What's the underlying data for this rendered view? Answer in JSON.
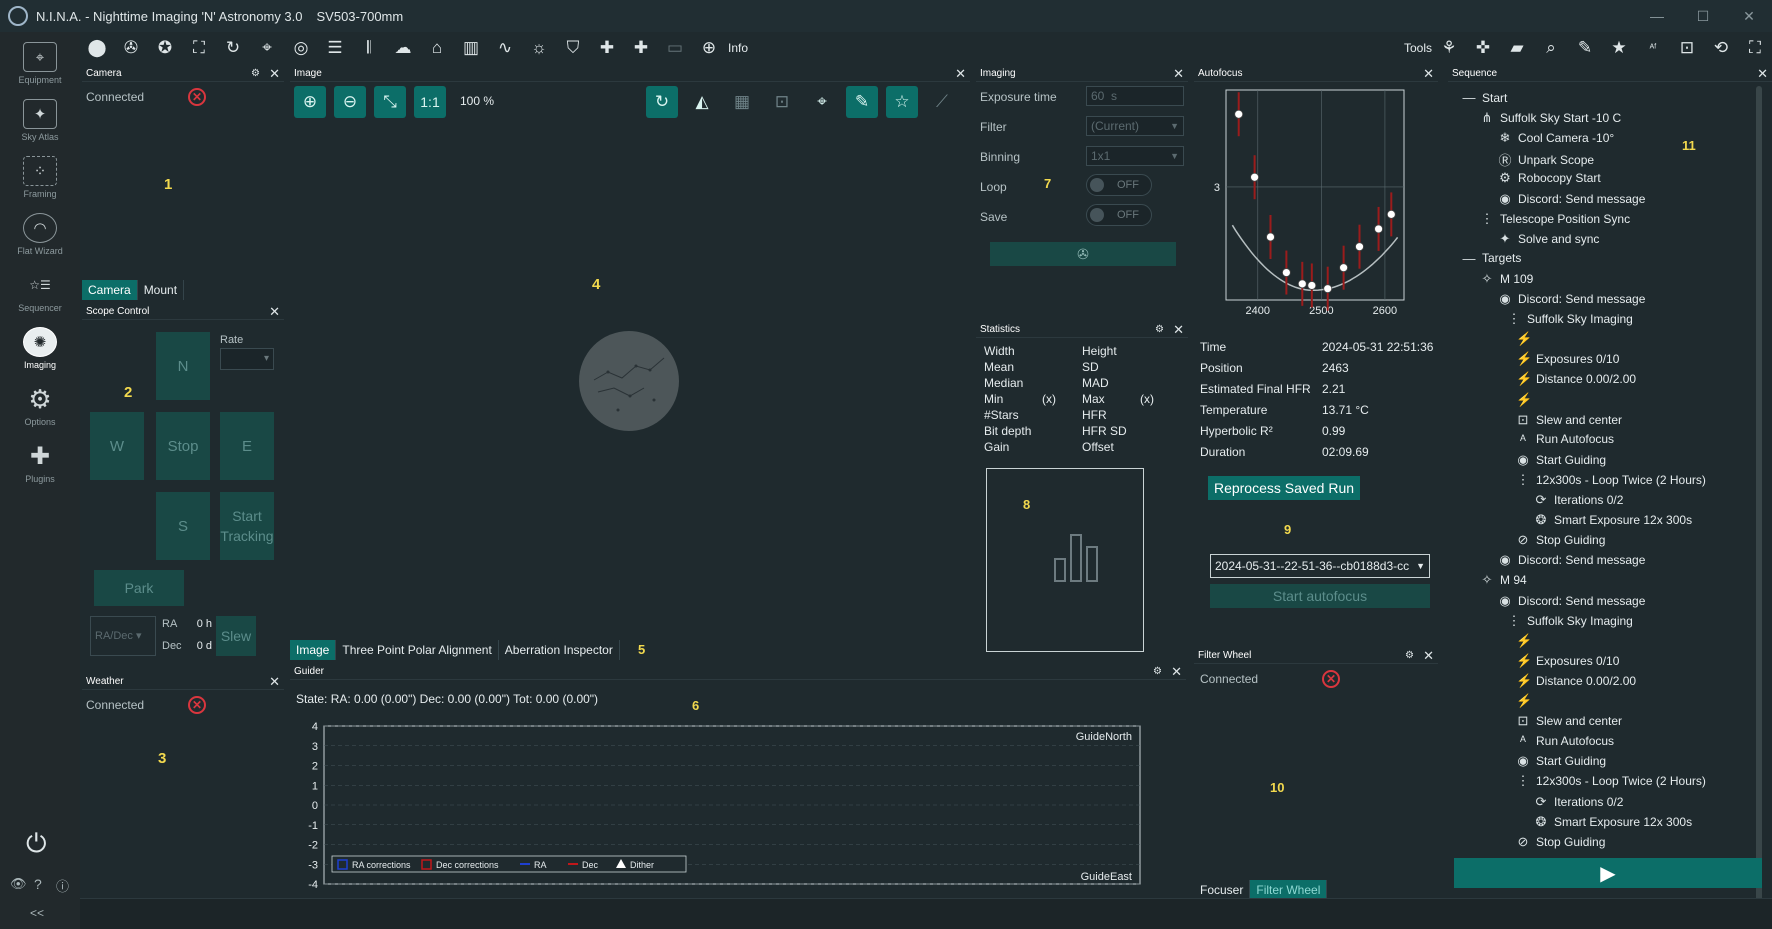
{
  "window": {
    "app_title": "N.I.N.A. - Nighttime Imaging 'N' Astronomy 3.0",
    "profile": "SV503-700mm",
    "minimize": "—",
    "maximize": "☐",
    "close": "✕"
  },
  "nav": {
    "items": [
      {
        "label": "Equipment",
        "icon": "telescope-icon"
      },
      {
        "label": "Sky Atlas",
        "icon": "sky-atlas-icon"
      },
      {
        "label": "Framing",
        "icon": "framing-icon"
      },
      {
        "label": "Flat Wizard",
        "icon": "flat-wizard-icon"
      },
      {
        "label": "Sequencer",
        "icon": "sequencer-icon"
      },
      {
        "label": "Imaging",
        "icon": "imaging-icon"
      },
      {
        "label": "Options",
        "icon": "gear-icon"
      },
      {
        "label": "Plugins",
        "icon": "puzzle-icon"
      }
    ],
    "collapse": "<<"
  },
  "toolbar": {
    "info_label": "Info",
    "tools_label": "Tools"
  },
  "camera": {
    "title": "Camera",
    "connected_label": "Connected",
    "marker": "1",
    "tab_camera": "Camera",
    "tab_mount": "Mount"
  },
  "scope": {
    "title": "Scope Control",
    "marker": "2",
    "rate_label": "Rate",
    "north": "N",
    "west": "W",
    "stop": "Stop",
    "east": "E",
    "south": "S",
    "start_tracking": "Start Tracking",
    "park": "Park",
    "coord_mode": "RA/Dec",
    "ra_label": "RA",
    "ra_value": "0 h",
    "dec_label": "Dec",
    "dec_value": "0 d",
    "slew": "Slew"
  },
  "weather": {
    "title": "Weather",
    "connected_label": "Connected",
    "marker": "3"
  },
  "image": {
    "title": "Image",
    "zoom": "100 %",
    "one_to_one": "1:1",
    "marker": "4",
    "marker5": "5",
    "tabs": [
      "Image",
      "Three Point Polar Alignment",
      "Aberration Inspector"
    ]
  },
  "guider": {
    "title": "Guider",
    "state": "State:  RA: 0.00 (0.00\")  Dec: 0.00 (0.00\")  Tot: 0.00 (0.00\")",
    "marker": "6",
    "yticks": [
      "4",
      "3",
      "2",
      "1",
      "0",
      "-1",
      "-2",
      "-3",
      "-4"
    ],
    "label_north": "GuideNorth",
    "label_east": "GuideEast",
    "legend": [
      "RA corrections",
      "Dec corrections",
      "RA",
      "Dec",
      "Dither"
    ],
    "colors": {
      "ra": "#1e3fd0",
      "dec": "#c0171a"
    }
  },
  "imaging": {
    "title": "Imaging",
    "marker": "7",
    "exposure_label": "Exposure time",
    "exposure_value": "60",
    "exposure_unit": "s",
    "filter_label": "Filter",
    "filter_value": "(Current)",
    "binning_label": "Binning",
    "binning_value": "1x1",
    "loop_label": "Loop",
    "loop_value": "OFF",
    "save_label": "Save",
    "save_value": "OFF"
  },
  "statistics": {
    "title": "Statistics",
    "marker": "8",
    "rows": [
      [
        "Width",
        "Height"
      ],
      [
        "Mean",
        "SD"
      ],
      [
        "Median",
        "MAD"
      ],
      [
        "Min",
        "(x)",
        "Max",
        "(x)"
      ],
      [
        "#Stars",
        "HFR"
      ],
      [
        "Bit depth",
        "HFR SD"
      ],
      [
        "Gain",
        "Offset"
      ]
    ]
  },
  "autofocus": {
    "title": "Autofocus",
    "marker": "9",
    "chart_data": {
      "type": "scatter",
      "x": [
        2370,
        2395,
        2420,
        2445,
        2470,
        2485,
        2510,
        2535,
        2560,
        2590,
        2610
      ],
      "y": [
        3.45,
        3.06,
        2.69,
        2.47,
        2.4,
        2.39,
        2.37,
        2.5,
        2.63,
        2.74,
        2.83
      ],
      "fit": true,
      "xticks": [
        "2400",
        "2500",
        "2600"
      ],
      "yticks": [
        "3"
      ]
    },
    "info": [
      [
        "Time",
        "2024-05-31 22:51:36"
      ],
      [
        "Position",
        "2463"
      ],
      [
        "Estimated Final HFR",
        "2.21"
      ],
      [
        "Temperature",
        "13.71 °C"
      ],
      [
        "Hyperbolic R²",
        "0.99"
      ],
      [
        "Duration",
        "02:09.69"
      ]
    ],
    "reprocess": "Reprocess Saved Run",
    "run_select": "2024-05-31--22-51-36--cb0188d3-cc",
    "start": "Start autofocus"
  },
  "filterwheel": {
    "title": "Filter Wheel",
    "connected_label": "Connected",
    "marker": "10",
    "tab_focuser": "Focuser",
    "tab_fw": "Filter Wheel"
  },
  "sequence": {
    "title": "Sequence",
    "marker": "11",
    "items": [
      {
        "t": "Start",
        "l": 0,
        "i": "—"
      },
      {
        "t": "Suffolk Sky Start -10 C",
        "l": 1,
        "i": "⋔"
      },
      {
        "t": "Cool Camera -10°",
        "l": 2,
        "i": "❄"
      },
      {
        "t": "Unpark Scope",
        "l": 2,
        "i": "Ⓡ"
      },
      {
        "t": "Robocopy Start",
        "l": 2,
        "i": "⚙"
      },
      {
        "t": "Discord: Send message",
        "l": 2,
        "i": "◉"
      },
      {
        "t": "Telescope Position Sync",
        "l": 1,
        "i": "⋮"
      },
      {
        "t": "Solve and sync",
        "l": 2,
        "i": "✦"
      },
      {
        "t": "Targets",
        "l": 0,
        "i": "—"
      },
      {
        "t": "M 109",
        "l": 1,
        "i": "✧"
      },
      {
        "t": "Discord: Send message",
        "l": 2,
        "i": "◉"
      },
      {
        "t": "Suffolk Sky Imaging",
        "l": 2.5,
        "i": "⋮"
      },
      {
        "t": "",
        "l": 3,
        "i": "⚡"
      },
      {
        "t": "Exposures 0/10",
        "l": 3,
        "i": "⚡"
      },
      {
        "t": "Distance 0.00/2.00",
        "l": 3,
        "i": "⚡"
      },
      {
        "t": "",
        "l": 3,
        "i": "⚡"
      },
      {
        "t": "Slew and center",
        "l": 3,
        "i": "⊡"
      },
      {
        "t": "Run Autofocus",
        "l": 3,
        "i": "ᴬ"
      },
      {
        "t": "Start Guiding",
        "l": 3,
        "i": "◉"
      },
      {
        "t": "12x300s - Loop Twice (2 Hours)",
        "l": 3,
        "i": "⋮"
      },
      {
        "t": "Iterations 0/2",
        "l": 4,
        "i": "⟳"
      },
      {
        "t": "Smart Exposure  12x   300s",
        "l": 4,
        "i": "❂"
      },
      {
        "t": "Stop Guiding",
        "l": 3,
        "i": "⊘"
      },
      {
        "t": "Discord: Send message",
        "l": 2,
        "i": "◉"
      },
      {
        "t": "M 94",
        "l": 1,
        "i": "✧"
      },
      {
        "t": "Discord: Send message",
        "l": 2,
        "i": "◉"
      },
      {
        "t": "Suffolk Sky Imaging",
        "l": 2.5,
        "i": "⋮"
      },
      {
        "t": "",
        "l": 3,
        "i": "⚡"
      },
      {
        "t": "Exposures 0/10",
        "l": 3,
        "i": "⚡"
      },
      {
        "t": "Distance 0.00/2.00",
        "l": 3,
        "i": "⚡"
      },
      {
        "t": "",
        "l": 3,
        "i": "⚡"
      },
      {
        "t": "Slew and center",
        "l": 3,
        "i": "⊡"
      },
      {
        "t": "Run Autofocus",
        "l": 3,
        "i": "ᴬ"
      },
      {
        "t": "Start Guiding",
        "l": 3,
        "i": "◉"
      },
      {
        "t": "12x300s - Loop Twice (2 Hours)",
        "l": 3,
        "i": "⋮"
      },
      {
        "t": "Iterations 0/2",
        "l": 4,
        "i": "⟳"
      },
      {
        "t": "Smart Exposure  12x   300s",
        "l": 4,
        "i": "❂"
      },
      {
        "t": "Stop Guiding",
        "l": 3,
        "i": "⊘"
      }
    ]
  }
}
